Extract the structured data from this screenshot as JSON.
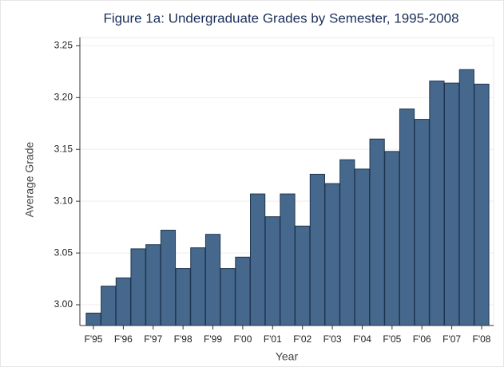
{
  "chart_data": {
    "type": "bar",
    "title": "Figure 1a: Undergraduate Grades by Semester, 1995-2008",
    "x_label": "Year",
    "y_label": "Average Grade",
    "categories": [
      "F'95",
      null,
      "F'96",
      null,
      "F'97",
      null,
      "F'98",
      null,
      "F'99",
      null,
      "F'00",
      null,
      "F'01",
      null,
      "F'02",
      null,
      "F'03",
      null,
      "F'04",
      null,
      "F'05",
      null,
      "F'06",
      null,
      "F'07",
      null,
      "F'08"
    ],
    "values": [
      2.992,
      3.018,
      3.026,
      3.054,
      3.058,
      3.072,
      3.035,
      3.055,
      3.068,
      3.035,
      3.046,
      3.107,
      3.085,
      3.107,
      3.076,
      3.126,
      3.117,
      3.14,
      3.131,
      3.16,
      3.148,
      3.189,
      3.179,
      3.216,
      3.214,
      3.227,
      3.213
    ],
    "color": "#46688c",
    "ylim": [
      2.98,
      3.258
    ],
    "yticks": [
      {
        "value": 3,
        "label": "3.00"
      },
      3.05,
      {
        "value": 3.1,
        "label": "3.10"
      },
      3.15,
      {
        "value": 3.2,
        "label": "3.20"
      },
      3.25
    ],
    "grid": true
  }
}
